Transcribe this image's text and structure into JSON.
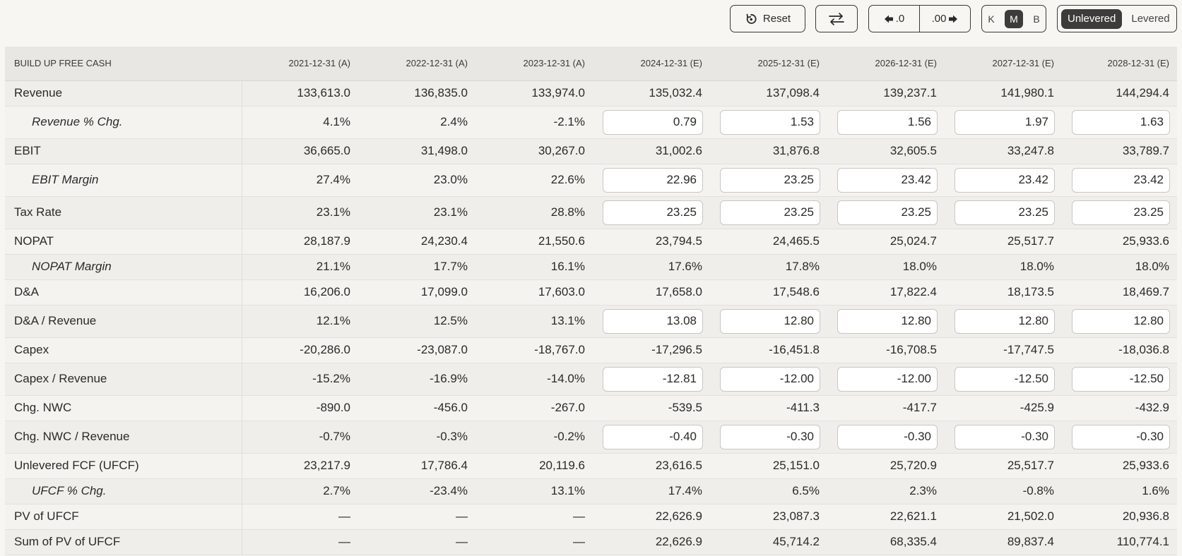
{
  "toolbar": {
    "reset_label": "Reset",
    "decimal_decrease_label": ".0",
    "decimal_increase_label": ".00",
    "units": [
      "K",
      "M",
      "B"
    ],
    "active_unit": "M",
    "lev_options": [
      "Unlevered",
      "Levered"
    ],
    "active_lev": "Unlevered"
  },
  "table": {
    "header_label": "BUILD UP FREE CASH",
    "columns": [
      "2021-12-31 (A)",
      "2022-12-31 (A)",
      "2023-12-31 (A)",
      "2024-12-31 (E)",
      "2025-12-31 (E)",
      "2026-12-31 (E)",
      "2027-12-31 (E)",
      "2028-12-31 (E)"
    ],
    "rows": [
      {
        "label": "Revenue",
        "sub": false,
        "cells": [
          "133,613.0",
          "136,835.0",
          "133,974.0",
          "135,032.4",
          "137,098.4",
          "139,237.1",
          "141,980.1",
          "144,294.4"
        ]
      },
      {
        "label": "Revenue % Chg.",
        "sub": true,
        "cells": [
          "4.1%",
          "2.4%",
          "-2.1%"
        ],
        "inputs": [
          "0.79",
          "1.53",
          "1.56",
          "1.97",
          "1.63"
        ]
      },
      {
        "label": "EBIT",
        "sub": false,
        "cells": [
          "36,665.0",
          "31,498.0",
          "30,267.0",
          "31,002.6",
          "31,876.8",
          "32,605.5",
          "33,247.8",
          "33,789.7"
        ]
      },
      {
        "label": "EBIT Margin",
        "sub": true,
        "cells": [
          "27.4%",
          "23.0%",
          "22.6%"
        ],
        "inputs": [
          "22.96",
          "23.25",
          "23.42",
          "23.42",
          "23.42"
        ]
      },
      {
        "label": "Tax Rate",
        "sub": false,
        "cells": [
          "23.1%",
          "23.1%",
          "28.8%"
        ],
        "inputs": [
          "23.25",
          "23.25",
          "23.25",
          "23.25",
          "23.25"
        ]
      },
      {
        "label": "NOPAT",
        "sub": false,
        "cells": [
          "28,187.9",
          "24,230.4",
          "21,550.6",
          "23,794.5",
          "24,465.5",
          "25,024.7",
          "25,517.7",
          "25,933.6"
        ]
      },
      {
        "label": "NOPAT Margin",
        "sub": true,
        "cells": [
          "21.1%",
          "17.7%",
          "16.1%",
          "17.6%",
          "17.8%",
          "18.0%",
          "18.0%",
          "18.0%"
        ]
      },
      {
        "label": "D&A",
        "sub": false,
        "cells": [
          "16,206.0",
          "17,099.0",
          "17,603.0",
          "17,658.0",
          "17,548.6",
          "17,822.4",
          "18,173.5",
          "18,469.7"
        ]
      },
      {
        "label": "D&A / Revenue",
        "sub": false,
        "cells": [
          "12.1%",
          "12.5%",
          "13.1%"
        ],
        "inputs": [
          "13.08",
          "12.80",
          "12.80",
          "12.80",
          "12.80"
        ]
      },
      {
        "label": "Capex",
        "sub": false,
        "cells": [
          "-20,286.0",
          "-23,087.0",
          "-18,767.0",
          "-17,296.5",
          "-16,451.8",
          "-16,708.5",
          "-17,747.5",
          "-18,036.8"
        ]
      },
      {
        "label": "Capex / Revenue",
        "sub": false,
        "cells": [
          "-15.2%",
          "-16.9%",
          "-14.0%"
        ],
        "inputs": [
          "-12.81",
          "-12.00",
          "-12.00",
          "-12.50",
          "-12.50"
        ]
      },
      {
        "label": "Chg. NWC",
        "sub": false,
        "cells": [
          "-890.0",
          "-456.0",
          "-267.0",
          "-539.5",
          "-411.3",
          "-417.7",
          "-425.9",
          "-432.9"
        ]
      },
      {
        "label": "Chg. NWC / Revenue",
        "sub": false,
        "cells": [
          "-0.7%",
          "-0.3%",
          "-0.2%"
        ],
        "inputs": [
          "-0.40",
          "-0.30",
          "-0.30",
          "-0.30",
          "-0.30"
        ]
      },
      {
        "label": "Unlevered FCF (UFCF)",
        "sub": false,
        "cells": [
          "23,217.9",
          "17,786.4",
          "20,119.6",
          "23,616.5",
          "25,151.0",
          "25,720.9",
          "25,517.7",
          "25,933.6"
        ]
      },
      {
        "label": "UFCF % Chg.",
        "sub": true,
        "cells": [
          "2.7%",
          "-23.4%",
          "13.1%",
          "17.4%",
          "6.5%",
          "2.3%",
          "-0.8%",
          "1.6%"
        ]
      },
      {
        "label": "PV of UFCF",
        "sub": false,
        "cells": [
          "—",
          "—",
          "—",
          "22,626.9",
          "23,087.3",
          "22,621.1",
          "21,502.0",
          "20,936.8"
        ]
      },
      {
        "label": "Sum of PV of UFCF",
        "sub": false,
        "cells": [
          "—",
          "—",
          "—",
          "22,626.9",
          "45,714.2",
          "68,335.4",
          "89,837.4",
          "110,774.1"
        ]
      }
    ]
  }
}
